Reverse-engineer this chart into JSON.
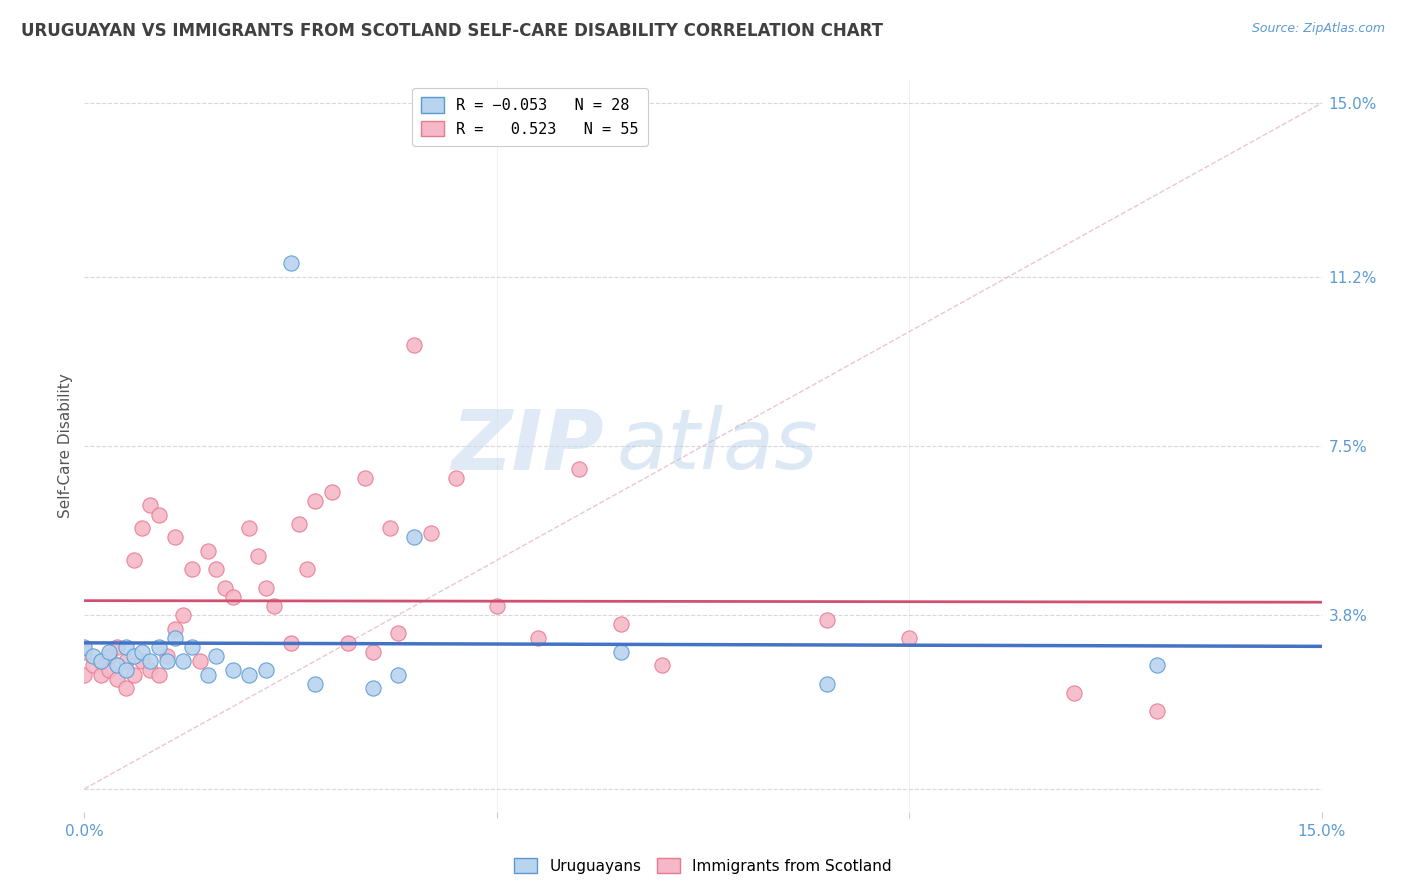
{
  "title": "URUGUAYAN VS IMMIGRANTS FROM SCOTLAND SELF-CARE DISABILITY CORRELATION CHART",
  "source": "Source: ZipAtlas.com",
  "ylabel": "Self-Care Disability",
  "xlim": [
    0,
    0.15
  ],
  "ylim": [
    -0.005,
    0.155
  ],
  "yticks": [
    0.0,
    0.038,
    0.075,
    0.112,
    0.15
  ],
  "ytick_labels": [
    "",
    "3.8%",
    "7.5%",
    "11.2%",
    "15.0%"
  ],
  "xticks": [
    0.0,
    0.05,
    0.1,
    0.15
  ],
  "xtick_labels": [
    "0.0%",
    "",
    "",
    "15.0%"
  ],
  "blue_R": -0.053,
  "blue_N": 28,
  "pink_R": 0.523,
  "pink_N": 55,
  "blue_color": "#b8d4ee",
  "pink_color": "#f5b8c8",
  "blue_edge_color": "#5b9bd5",
  "pink_edge_color": "#e87a90",
  "blue_line_color": "#4472c4",
  "pink_line_color": "#d05070",
  "ref_line_color": "#c8c8c8",
  "background_color": "#ffffff",
  "grid_color": "#d8d8d8",
  "title_color": "#404040",
  "axis_label_color": "#5b9bd5",
  "watermark_zip": "ZIP",
  "watermark_atlas": "atlas",
  "blue_scatter_x": [
    0.0,
    0.001,
    0.002,
    0.003,
    0.004,
    0.005,
    0.005,
    0.006,
    0.007,
    0.008,
    0.009,
    0.01,
    0.011,
    0.012,
    0.013,
    0.015,
    0.016,
    0.018,
    0.02,
    0.022,
    0.025,
    0.028,
    0.035,
    0.038,
    0.04,
    0.065,
    0.09,
    0.13
  ],
  "blue_scatter_y": [
    0.031,
    0.029,
    0.028,
    0.03,
    0.027,
    0.031,
    0.026,
    0.029,
    0.03,
    0.028,
    0.031,
    0.028,
    0.033,
    0.028,
    0.031,
    0.025,
    0.029,
    0.026,
    0.025,
    0.026,
    0.115,
    0.023,
    0.022,
    0.025,
    0.055,
    0.03,
    0.023,
    0.027
  ],
  "pink_scatter_x": [
    0.0,
    0.0,
    0.001,
    0.002,
    0.002,
    0.003,
    0.003,
    0.004,
    0.004,
    0.005,
    0.005,
    0.006,
    0.006,
    0.007,
    0.007,
    0.008,
    0.008,
    0.009,
    0.009,
    0.01,
    0.011,
    0.011,
    0.012,
    0.013,
    0.014,
    0.015,
    0.016,
    0.017,
    0.018,
    0.02,
    0.021,
    0.022,
    0.023,
    0.025,
    0.026,
    0.027,
    0.028,
    0.03,
    0.032,
    0.034,
    0.035,
    0.037,
    0.038,
    0.04,
    0.042,
    0.045,
    0.05,
    0.055,
    0.06,
    0.065,
    0.07,
    0.09,
    0.1,
    0.12,
    0.13
  ],
  "pink_scatter_y": [
    0.025,
    0.03,
    0.027,
    0.025,
    0.028,
    0.026,
    0.029,
    0.024,
    0.031,
    0.022,
    0.028,
    0.025,
    0.05,
    0.028,
    0.057,
    0.026,
    0.062,
    0.025,
    0.06,
    0.029,
    0.035,
    0.055,
    0.038,
    0.048,
    0.028,
    0.052,
    0.048,
    0.044,
    0.042,
    0.057,
    0.051,
    0.044,
    0.04,
    0.032,
    0.058,
    0.048,
    0.063,
    0.065,
    0.032,
    0.068,
    0.03,
    0.057,
    0.034,
    0.097,
    0.056,
    0.068,
    0.04,
    0.033,
    0.07,
    0.036,
    0.027,
    0.037,
    0.033,
    0.021,
    0.017
  ]
}
